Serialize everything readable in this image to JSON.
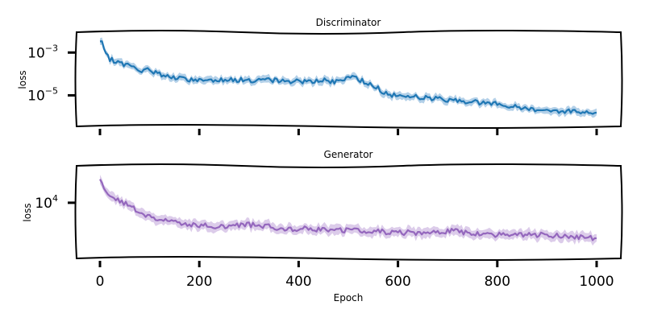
{
  "chart_data": [
    {
      "type": "line",
      "title": "Discriminator",
      "ylabel": "loss",
      "xlabel": "",
      "yscale": "log",
      "xlim": [
        0,
        1000
      ],
      "ylim_exp": [
        -6.3,
        -2.2
      ],
      "yticks": [
        {
          "base": "10",
          "exp": "−3",
          "value": -3
        },
        {
          "base": "10",
          "exp": "−5",
          "value": -5
        }
      ],
      "color": "#1f77b4",
      "band_color": "#a6c8e4",
      "series_log10": [
        {
          "x": 0,
          "y": -2.5
        },
        {
          "x": 5,
          "y": -2.6
        },
        {
          "x": 10,
          "y": -3.1
        },
        {
          "x": 20,
          "y": -3.3
        },
        {
          "x": 40,
          "y": -3.5
        },
        {
          "x": 60,
          "y": -3.6
        },
        {
          "x": 80,
          "y": -3.9
        },
        {
          "x": 100,
          "y": -3.8
        },
        {
          "x": 120,
          "y": -4.0
        },
        {
          "x": 150,
          "y": -4.2
        },
        {
          "x": 200,
          "y": -4.3
        },
        {
          "x": 250,
          "y": -4.25
        },
        {
          "x": 300,
          "y": -4.3
        },
        {
          "x": 350,
          "y": -4.3
        },
        {
          "x": 400,
          "y": -4.35
        },
        {
          "x": 450,
          "y": -4.3
        },
        {
          "x": 480,
          "y": -4.4
        },
        {
          "x": 500,
          "y": -4.1
        },
        {
          "x": 550,
          "y": -4.5
        },
        {
          "x": 580,
          "y": -5.0
        },
        {
          "x": 600,
          "y": -5.0
        },
        {
          "x": 650,
          "y": -5.1
        },
        {
          "x": 700,
          "y": -5.2
        },
        {
          "x": 750,
          "y": -5.3
        },
        {
          "x": 800,
          "y": -5.4
        },
        {
          "x": 850,
          "y": -5.6
        },
        {
          "x": 900,
          "y": -5.7
        },
        {
          "x": 950,
          "y": -5.75
        },
        {
          "x": 1000,
          "y": -5.8
        }
      ]
    },
    {
      "type": "line",
      "title": "Generator",
      "ylabel": "loss",
      "xlabel": "Epoch",
      "yscale": "log",
      "xlim": [
        0,
        1000
      ],
      "ylim_exp": [
        3.72,
        4.18
      ],
      "yticks": [
        {
          "base": "10",
          "exp": "4",
          "value": 4
        }
      ],
      "xticks": [
        0,
        200,
        400,
        600,
        800,
        1000
      ],
      "color": "#9467bd",
      "band_color": "#d6c3e6",
      "series_log10": [
        {
          "x": 0,
          "y": 4.12
        },
        {
          "x": 10,
          "y": 4.05
        },
        {
          "x": 30,
          "y": 4.02
        },
        {
          "x": 60,
          "y": 3.98
        },
        {
          "x": 80,
          "y": 3.95
        },
        {
          "x": 100,
          "y": 3.92
        },
        {
          "x": 150,
          "y": 3.9
        },
        {
          "x": 200,
          "y": 3.88
        },
        {
          "x": 250,
          "y": 3.87
        },
        {
          "x": 300,
          "y": 3.88
        },
        {
          "x": 350,
          "y": 3.87
        },
        {
          "x": 400,
          "y": 3.86
        },
        {
          "x": 450,
          "y": 3.86
        },
        {
          "x": 500,
          "y": 3.85
        },
        {
          "x": 550,
          "y": 3.85
        },
        {
          "x": 600,
          "y": 3.84
        },
        {
          "x": 650,
          "y": 3.84
        },
        {
          "x": 700,
          "y": 3.85
        },
        {
          "x": 750,
          "y": 3.84
        },
        {
          "x": 800,
          "y": 3.83
        },
        {
          "x": 850,
          "y": 3.83
        },
        {
          "x": 900,
          "y": 3.83
        },
        {
          "x": 950,
          "y": 3.82
        },
        {
          "x": 1000,
          "y": 3.81
        }
      ]
    }
  ]
}
